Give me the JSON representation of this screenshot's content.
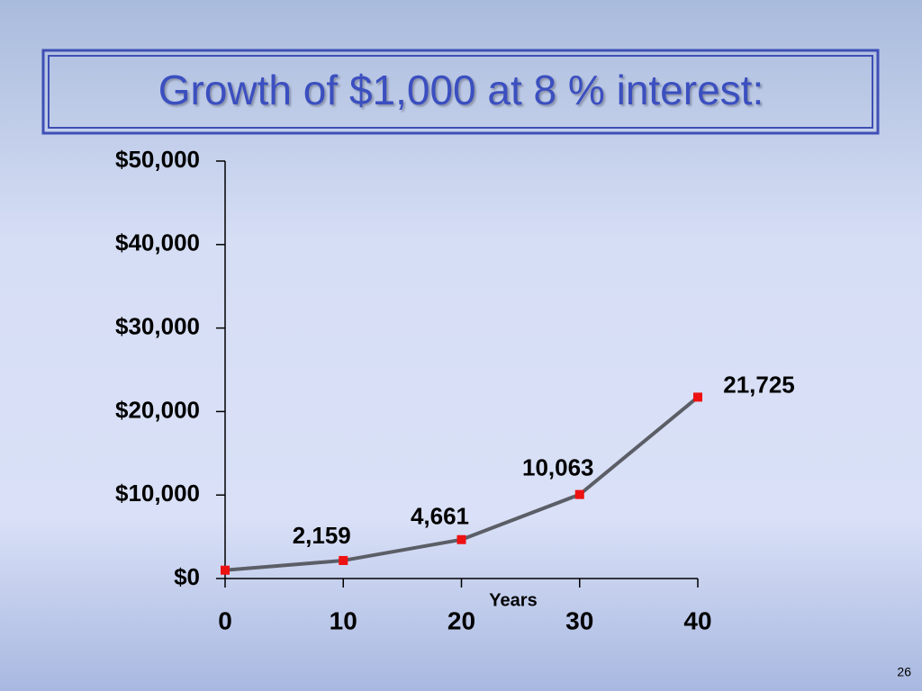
{
  "chart_data": {
    "type": "line",
    "title": "Growth of $1,000 at 8 % interest:",
    "x": [
      0,
      10,
      20,
      30,
      40
    ],
    "xlabel": "Years",
    "series": [
      {
        "name": null,
        "color": "#5b5e66",
        "marker_color": "#ee1111",
        "values": [
          1000,
          2159,
          4661,
          10063,
          21725
        ],
        "value_labels": [
          null,
          "2,159",
          "4,661",
          "10,063",
          "21,725"
        ]
      }
    ],
    "xlim": [
      0,
      40
    ],
    "xticks": [
      0,
      10,
      20,
      30,
      40
    ],
    "ylim": [
      0,
      50000
    ],
    "yticks": [
      {
        "value": 0,
        "label": "$0"
      },
      {
        "value": 10000,
        "label": "$10,000"
      },
      {
        "value": 20000,
        "label": "$20,000"
      },
      {
        "value": 30000,
        "label": "$30,000"
      },
      {
        "value": 40000,
        "label": "$40,000"
      },
      {
        "value": 50000,
        "label": "$50,000"
      }
    ],
    "grid": false
  },
  "slide_number": "26"
}
